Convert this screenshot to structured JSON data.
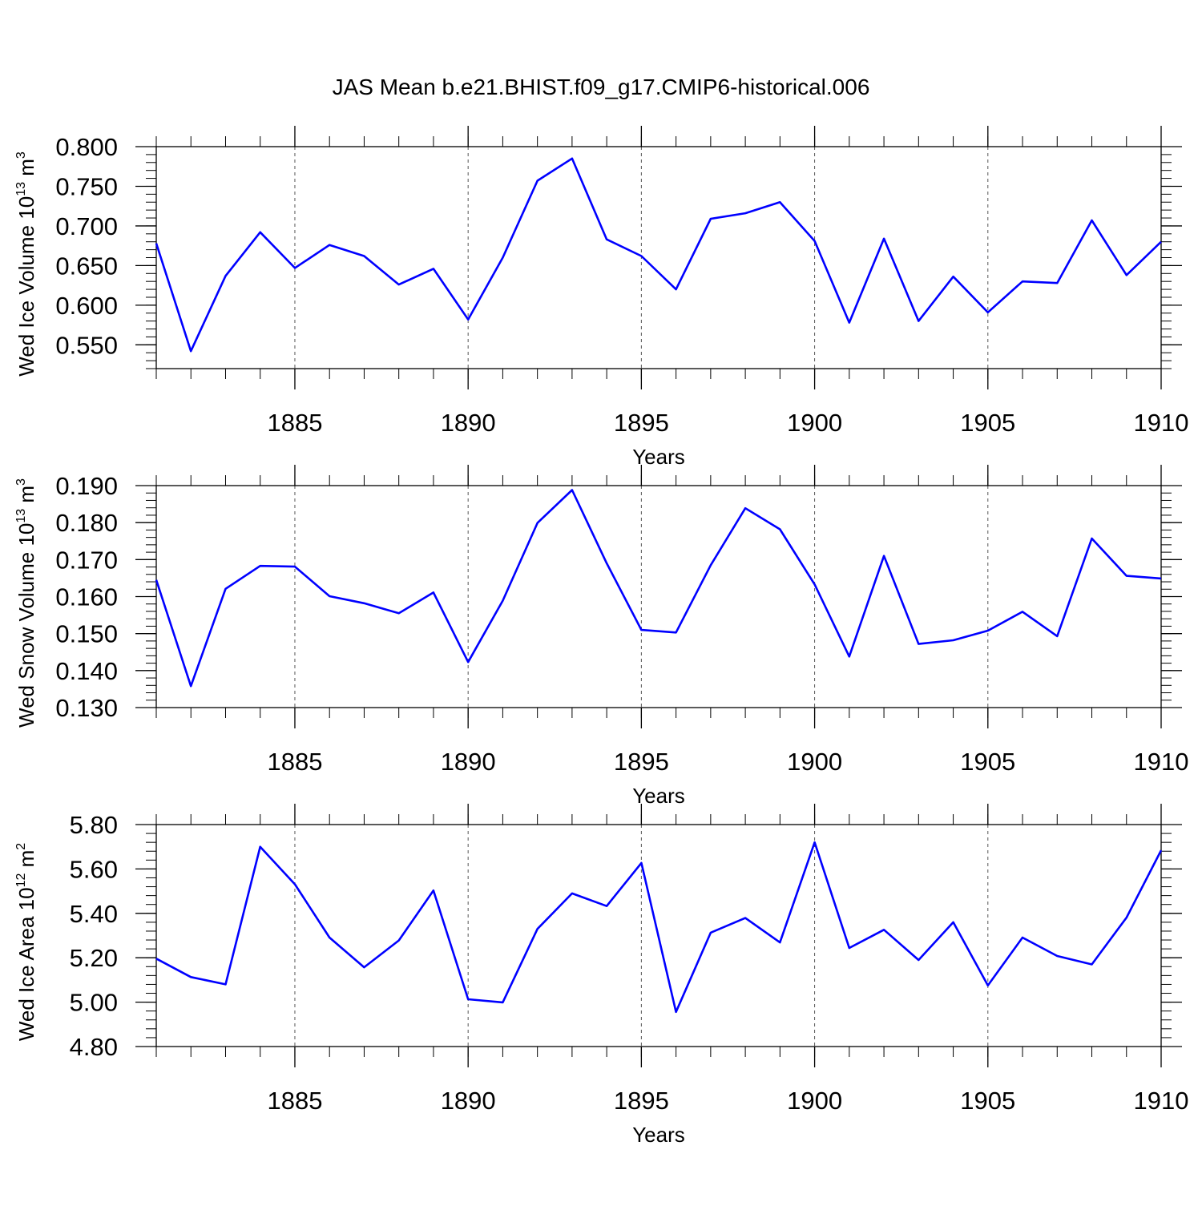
{
  "figure_title": "JAS Mean b.e21.BHIST.f09_g17.CMIP6-historical.006",
  "colors": {
    "line": "#0000ff",
    "axis": "#000000",
    "grid": "#555555",
    "background": "#ffffff"
  },
  "chart_data": [
    {
      "type": "line",
      "ylabel_main": "Wed Ice Volume 10",
      "ylabel_exp": "13",
      "ylabel_unit": "m",
      "ylabel_unit_exp": "3",
      "xlabel": "Years",
      "xlim": [
        1881,
        1910
      ],
      "ylim": [
        0.52,
        0.8
      ],
      "y_ticks": [
        0.55,
        0.6,
        0.65,
        0.7,
        0.75,
        0.8
      ],
      "y_tick_labels": [
        "0.550",
        "0.600",
        "0.650",
        "0.700",
        "0.750",
        "0.800"
      ],
      "y_minor_step": 0.01,
      "x_ticks": [
        1885,
        1890,
        1895,
        1900,
        1905,
        1910
      ],
      "x_tick_labels": [
        "1885",
        "1890",
        "1895",
        "1900",
        "1905",
        "1910"
      ],
      "grid": "vertical dashed at major x ticks",
      "series": [
        {
          "name": "Wed Ice Volume",
          "x": [
            1881,
            1882,
            1883,
            1884,
            1885,
            1886,
            1887,
            1888,
            1889,
            1890,
            1891,
            1892,
            1893,
            1894,
            1895,
            1896,
            1897,
            1898,
            1899,
            1900,
            1901,
            1902,
            1903,
            1904,
            1905,
            1906,
            1907,
            1908,
            1909,
            1910
          ],
          "y": [
            0.678,
            0.542,
            0.637,
            0.692,
            0.647,
            0.676,
            0.662,
            0.626,
            0.646,
            0.582,
            0.66,
            0.757,
            0.785,
            0.683,
            0.662,
            0.62,
            0.709,
            0.716,
            0.73,
            0.681,
            0.578,
            0.684,
            0.58,
            0.636,
            0.591,
            0.63,
            0.628,
            0.707,
            0.638,
            0.68
          ]
        }
      ]
    },
    {
      "type": "line",
      "ylabel_main": "Wed Snow Volume 10",
      "ylabel_exp": "13",
      "ylabel_unit": "m",
      "ylabel_unit_exp": "3",
      "xlabel": "Years",
      "xlim": [
        1881,
        1910
      ],
      "ylim": [
        0.13,
        0.19
      ],
      "y_ticks": [
        0.13,
        0.14,
        0.15,
        0.16,
        0.17,
        0.18,
        0.19
      ],
      "y_tick_labels": [
        "0.130",
        "0.140",
        "0.150",
        "0.160",
        "0.170",
        "0.180",
        "0.190"
      ],
      "y_minor_step": 0.002,
      "x_ticks": [
        1885,
        1890,
        1895,
        1900,
        1905,
        1910
      ],
      "x_tick_labels": [
        "1885",
        "1890",
        "1895",
        "1900",
        "1905",
        "1910"
      ],
      "grid": "vertical dashed at major x ticks",
      "series": [
        {
          "name": "Wed Snow Volume",
          "x": [
            1881,
            1882,
            1883,
            1884,
            1885,
            1886,
            1887,
            1888,
            1889,
            1890,
            1891,
            1892,
            1893,
            1894,
            1895,
            1896,
            1897,
            1898,
            1899,
            1900,
            1901,
            1902,
            1903,
            1904,
            1905,
            1906,
            1907,
            1908,
            1909,
            1910
          ],
          "y": [
            0.1645,
            0.1358,
            0.1621,
            0.1683,
            0.1681,
            0.1601,
            0.1582,
            0.1555,
            0.1611,
            0.1423,
            0.1589,
            0.1799,
            0.1888,
            0.169,
            0.151,
            0.1503,
            0.1685,
            0.1839,
            0.1782,
            0.1633,
            0.1438,
            0.171,
            0.1472,
            0.1482,
            0.1508,
            0.1559,
            0.1493,
            0.1757,
            0.1656,
            0.1649
          ]
        }
      ]
    },
    {
      "type": "line",
      "ylabel_main": "Wed Ice Area 10",
      "ylabel_exp": "12",
      "ylabel_unit": "m",
      "ylabel_unit_exp": "2",
      "xlabel": "Years",
      "xlim": [
        1881,
        1910
      ],
      "ylim": [
        4.8,
        5.8
      ],
      "y_ticks": [
        4.8,
        5.0,
        5.2,
        5.4,
        5.6,
        5.8
      ],
      "y_tick_labels": [
        "4.80",
        "5.00",
        "5.20",
        "5.40",
        "5.60",
        "5.80"
      ],
      "y_minor_step": 0.04,
      "x_ticks": [
        1885,
        1890,
        1895,
        1900,
        1905,
        1910
      ],
      "x_tick_labels": [
        "1885",
        "1890",
        "1895",
        "1900",
        "1905",
        "1910"
      ],
      "grid": "vertical dashed at major x ticks",
      "series": [
        {
          "name": "Wed Ice Area",
          "x": [
            1881,
            1882,
            1883,
            1884,
            1885,
            1886,
            1887,
            1888,
            1889,
            1890,
            1891,
            1892,
            1893,
            1894,
            1895,
            1896,
            1897,
            1898,
            1899,
            1900,
            1901,
            1902,
            1903,
            1904,
            1905,
            1906,
            1907,
            1908,
            1909,
            1910
          ],
          "y": [
            5.196,
            5.113,
            5.08,
            5.7,
            5.531,
            5.291,
            5.157,
            5.278,
            5.503,
            5.013,
            4.999,
            5.33,
            5.49,
            5.433,
            5.627,
            4.956,
            5.313,
            5.379,
            5.269,
            5.72,
            5.244,
            5.326,
            5.19,
            5.36,
            5.075,
            5.291,
            5.208,
            5.17,
            5.381,
            5.684
          ]
        }
      ]
    }
  ]
}
